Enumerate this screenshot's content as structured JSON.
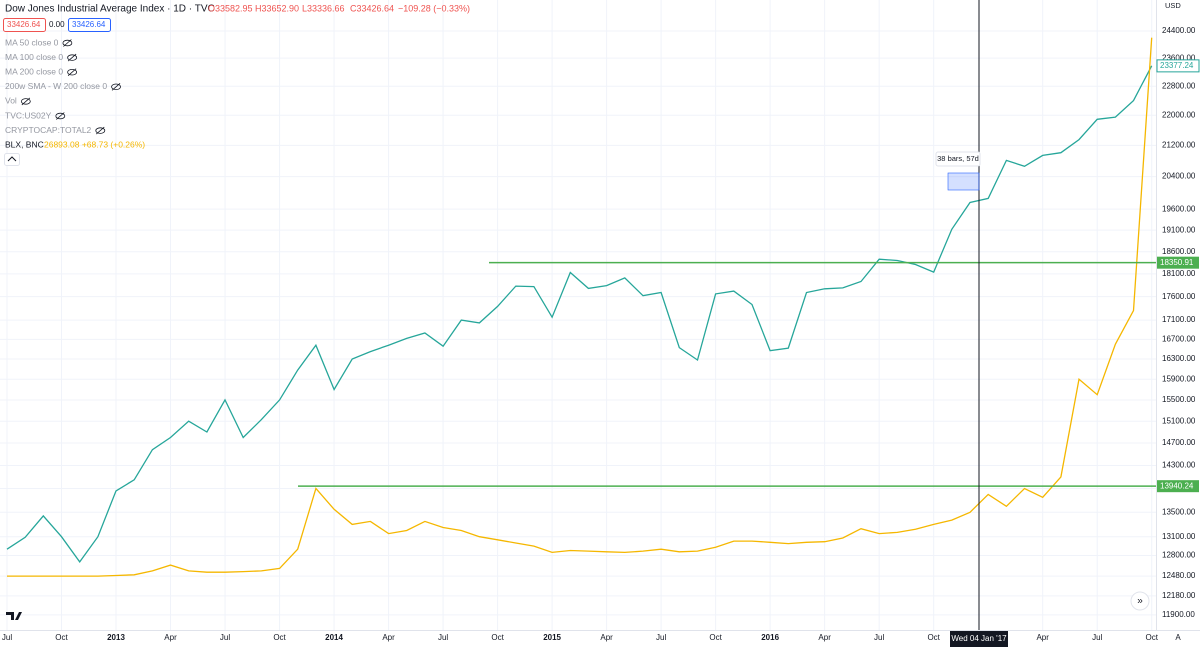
{
  "header": {
    "ohlc": [
      "O33582.95",
      "H33652.90",
      "L33336.66",
      "C33426.64",
      "−109.28 (−0.33%)"
    ],
    "price_boxes": [
      "33426.64",
      "0.00",
      "33426.64"
    ],
    "indicators": [
      "MA 50 close 0",
      "MA 100 close 0",
      "MA 200 close 0",
      "200w SMA - W 200 close 0",
      "Vol",
      "TVC:US02Y",
      "CRYPTOCAP:TOTAL2"
    ],
    "blx_readout": "26893.08 +68.73 (+0.26%)",
    "currency": "USD",
    "crosshair_date": "Wed 04 Jan '17",
    "measure": "38 bars, 57d",
    "scale_button": "A"
  },
  "chart_data": {
    "type": "line",
    "log_scale": true,
    "grid": true,
    "categories": [
      "Jul",
      null,
      null,
      "Oct",
      null,
      null,
      "2013",
      null,
      null,
      "Apr",
      null,
      null,
      "Jul",
      null,
      null,
      "Oct",
      null,
      null,
      "2014",
      null,
      null,
      "Apr",
      null,
      null,
      "Jul",
      null,
      null,
      "Oct",
      null,
      null,
      "2015",
      null,
      null,
      "Apr",
      null,
      null,
      "Jul",
      null,
      null,
      "Oct",
      null,
      null,
      "2016",
      null,
      null,
      "Apr",
      null,
      null,
      "Jul",
      null,
      null,
      "Oct",
      null,
      null,
      null,
      null,
      null,
      "Apr",
      null,
      null,
      "Jul",
      null,
      null,
      "Oct"
    ],
    "series": [
      {
        "name": "Dow Jones Industrial Average Index · 1D · TVC",
        "color": "#26a69a",
        "values": [
          12900,
          13090,
          13440,
          13100,
          12700,
          13100,
          13860,
          14050,
          14580,
          14800,
          15100,
          14900,
          15500,
          14800,
          15130,
          15500,
          16080,
          16580,
          15700,
          16300,
          16450,
          16580,
          16720,
          16830,
          16560,
          17100,
          17040,
          17390,
          17830,
          17820,
          17160,
          18130,
          17780,
          17840,
          18010,
          17620,
          17690,
          16530,
          16280,
          17660,
          17720,
          17430,
          16470,
          16520,
          17690,
          17770,
          17790,
          17930,
          18430,
          18400,
          18310,
          18140,
          19120,
          19760,
          19860,
          20810,
          20660,
          20940,
          21010,
          21350,
          21890,
          21950,
          22400,
          23380
        ]
      },
      {
        "name": "BLX, BNC",
        "color": "#f5b700",
        "values": [
          12480,
          12480,
          12480,
          12480,
          12480,
          12480,
          12490,
          12500,
          12560,
          12650,
          12560,
          12540,
          12540,
          12550,
          12560,
          12600,
          12900,
          13900,
          13550,
          13300,
          13350,
          13150,
          13200,
          13350,
          13250,
          13200,
          13100,
          13050,
          13000,
          12950,
          12850,
          12880,
          12870,
          12860,
          12850,
          12870,
          12900,
          12860,
          12870,
          12930,
          13030,
          13030,
          13010,
          12990,
          13010,
          13020,
          13080,
          13230,
          13150,
          13170,
          13220,
          13300,
          13370,
          13500,
          13800,
          13600,
          13900,
          13750,
          14100,
          15900,
          15600,
          16600,
          17300,
          24200
        ]
      }
    ],
    "ylim": [
      11680,
      25350
    ],
    "yticks": [
      {
        "value": 24400,
        "label": "24400.00"
      },
      {
        "value": 23600,
        "label": "23600.00"
      },
      {
        "value": 22800,
        "label": "22800.00"
      },
      {
        "value": 22000,
        "label": "22000.00"
      },
      {
        "value": 21200,
        "label": "21200.00"
      },
      {
        "value": 20400,
        "label": "20400.00"
      },
      {
        "value": 19600,
        "label": "19600.00"
      },
      {
        "value": 19100,
        "label": "19100.00"
      },
      {
        "value": 18600,
        "label": "18600.00"
      },
      {
        "value": 18100,
        "label": "18100.00"
      },
      {
        "value": 17600,
        "label": "17600.00"
      },
      {
        "value": 17100,
        "label": "17100.00"
      },
      {
        "value": 16700,
        "label": "16700.00"
      },
      {
        "value": 16300,
        "label": "16300.00"
      },
      {
        "value": 15900,
        "label": "15900.00"
      },
      {
        "value": 15500,
        "label": "15500.00"
      },
      {
        "value": 15100,
        "label": "15100.00"
      },
      {
        "value": 14700,
        "label": "14700.00"
      },
      {
        "value": 14300,
        "label": "14300.00"
      },
      {
        "value": 13900,
        "label": "13900.00"
      },
      {
        "value": 13500,
        "label": "13500.00"
      },
      {
        "value": 13100,
        "label": "13100.00"
      },
      {
        "value": 12800,
        "label": "12800.00"
      },
      {
        "value": 12480,
        "label": "12480.00"
      },
      {
        "value": 12180,
        "label": "12180.00"
      },
      {
        "value": 11900,
        "label": "11900.00"
      }
    ],
    "hlines": [
      18350.91,
      13940.24
    ],
    "hline_color": "#4caf50",
    "last_value": 23377.24
  }
}
